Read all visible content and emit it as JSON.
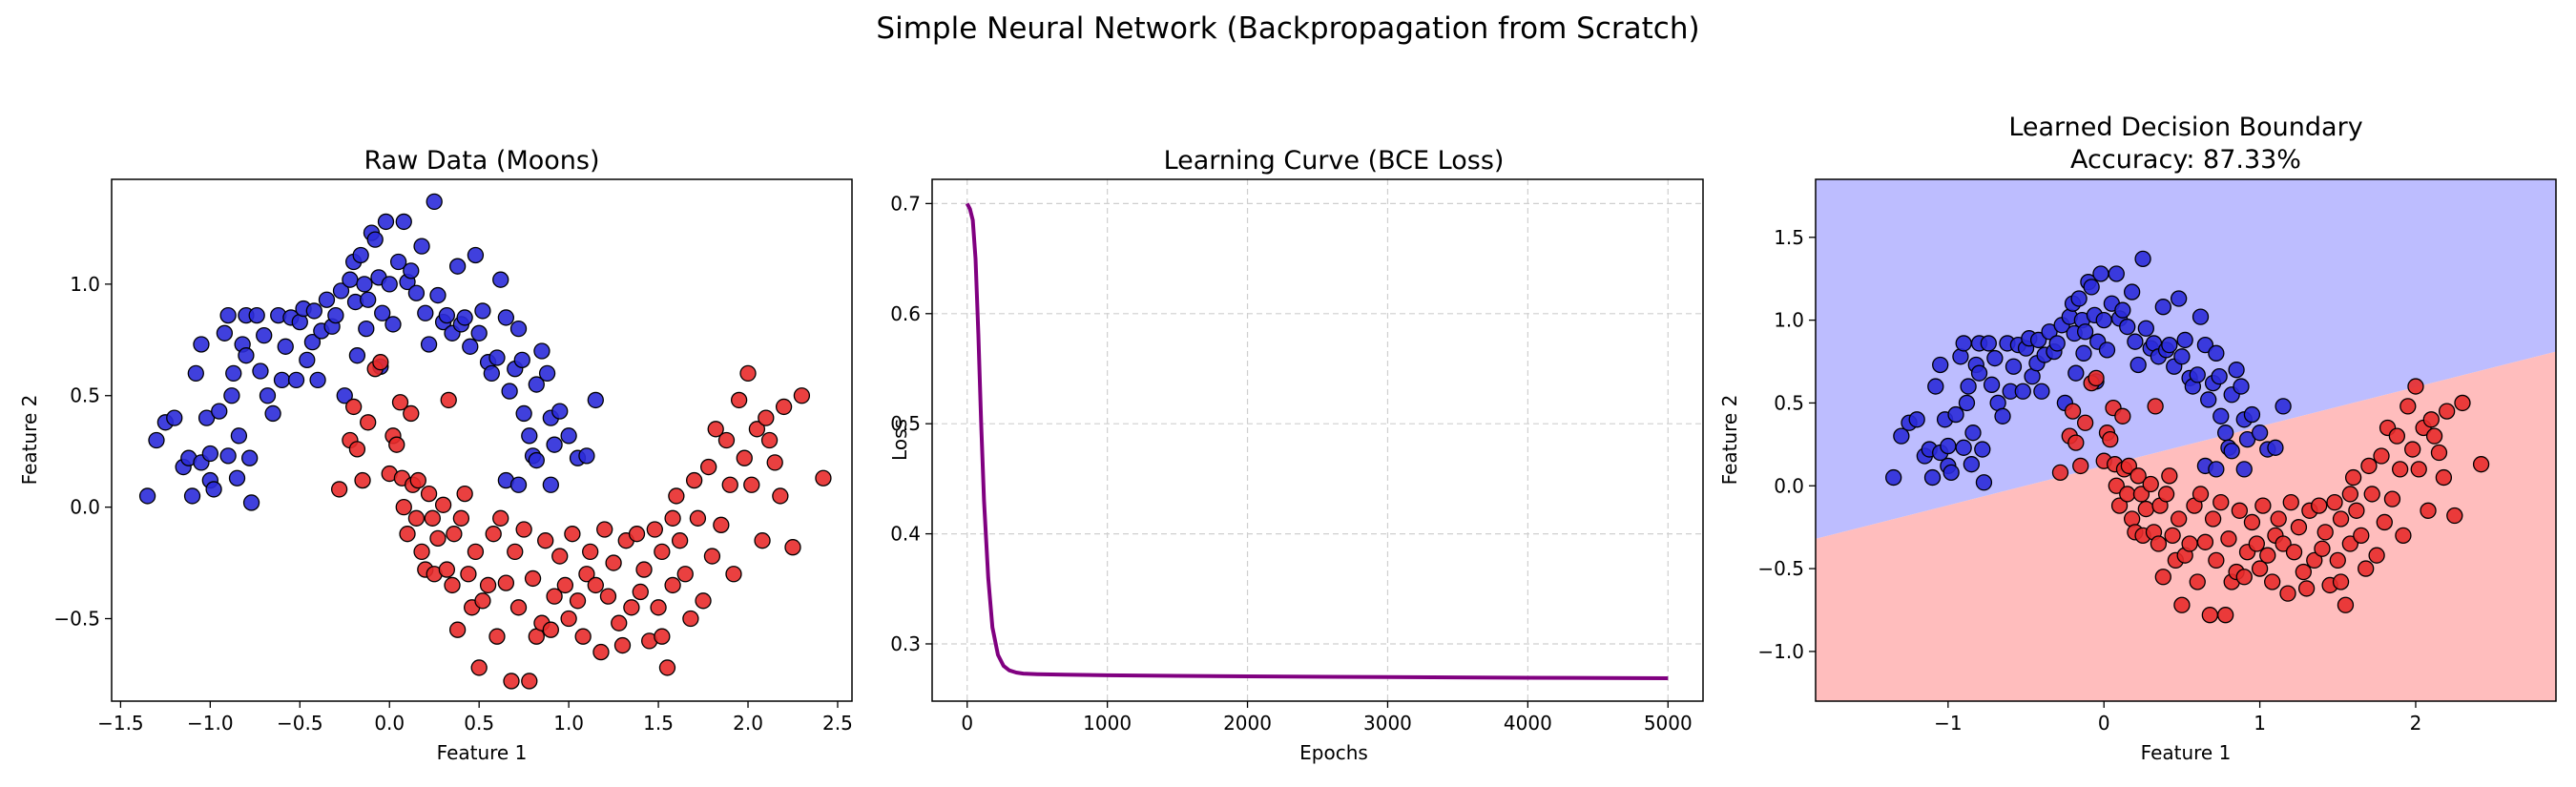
{
  "figure": {
    "suptitle": "Simple Neural Network (Backpropagation from Scratch)"
  },
  "chart_data": [
    {
      "type": "scatter",
      "title": "Raw Data (Moons)",
      "xlabel": "Feature 1",
      "ylabel": "Feature 2",
      "xlim": [
        -1.55,
        2.58
      ],
      "ylim": [
        -0.87,
        1.47
      ],
      "xticks": [
        -1.5,
        -1.0,
        -0.5,
        0.0,
        0.5,
        1.0,
        1.5,
        2.0,
        2.5
      ],
      "xtick_labels": [
        "−1.5",
        "−1.0",
        "−0.5",
        "0.0",
        "0.5",
        "1.0",
        "1.5",
        "2.0",
        "2.5"
      ],
      "yticks": [
        -0.5,
        0.0,
        0.5,
        1.0
      ],
      "ytick_labels": [
        "−0.5",
        "0.0",
        "0.5",
        "1.0"
      ],
      "grid": false,
      "colors": {
        "class0": "#2b2bd9",
        "class1": "#e82b2b",
        "edge": "#000000"
      },
      "series": [
        {
          "values": [
            [
              -1.35,
              0.05
            ],
            [
              -1.3,
              0.3
            ],
            [
              -1.25,
              0.38
            ],
            [
              -1.2,
              0.4
            ],
            [
              -1.15,
              0.18
            ],
            [
              -1.12,
              0.22
            ],
            [
              -1.1,
              0.05
            ],
            [
              -1.08,
              0.6
            ],
            [
              -1.05,
              0.73
            ],
            [
              -1.05,
              0.2
            ],
            [
              -1.02,
              0.4
            ],
            [
              -1.0,
              0.24
            ],
            [
              -1.0,
              0.12
            ],
            [
              -0.98,
              0.08
            ],
            [
              -0.95,
              0.43
            ],
            [
              -0.92,
              0.78
            ],
            [
              -0.9,
              0.86
            ],
            [
              -0.9,
              0.23
            ],
            [
              -0.88,
              0.5
            ],
            [
              -0.87,
              0.6
            ],
            [
              -0.85,
              0.13
            ],
            [
              -0.84,
              0.32
            ],
            [
              -0.82,
              0.73
            ],
            [
              -0.8,
              0.86
            ],
            [
              -0.8,
              0.68
            ],
            [
              -0.78,
              0.22
            ],
            [
              -0.77,
              0.02
            ],
            [
              -0.74,
              0.86
            ],
            [
              -0.72,
              0.61
            ],
            [
              -0.7,
              0.77
            ],
            [
              -0.68,
              0.5
            ],
            [
              -0.65,
              0.42
            ],
            [
              -0.62,
              0.86
            ],
            [
              -0.6,
              0.57
            ],
            [
              -0.58,
              0.72
            ],
            [
              -0.55,
              0.85
            ],
            [
              -0.52,
              0.57
            ],
            [
              -0.5,
              0.83
            ],
            [
              -0.48,
              0.89
            ],
            [
              -0.46,
              0.66
            ],
            [
              -0.43,
              0.74
            ],
            [
              -0.42,
              0.88
            ],
            [
              -0.4,
              0.57
            ],
            [
              -0.38,
              0.79
            ],
            [
              -0.35,
              0.93
            ],
            [
              -0.32,
              0.81
            ],
            [
              -0.3,
              0.86
            ],
            [
              -0.27,
              0.97
            ],
            [
              -0.25,
              0.5
            ],
            [
              -0.22,
              1.02
            ],
            [
              -0.2,
              1.1
            ],
            [
              -0.19,
              0.92
            ],
            [
              -0.18,
              0.68
            ],
            [
              -0.16,
              1.13
            ],
            [
              -0.14,
              1.0
            ],
            [
              -0.13,
              0.8
            ],
            [
              -0.12,
              0.93
            ],
            [
              -0.1,
              1.23
            ],
            [
              -0.08,
              1.2
            ],
            [
              -0.06,
              1.03
            ],
            [
              -0.05,
              0.63
            ],
            [
              -0.04,
              0.87
            ],
            [
              -0.02,
              1.28
            ],
            [
              0.0,
              1.0
            ],
            [
              0.02,
              0.82
            ],
            [
              0.05,
              1.1
            ],
            [
              0.08,
              1.28
            ],
            [
              0.1,
              1.01
            ],
            [
              0.12,
              1.06
            ],
            [
              0.15,
              0.96
            ],
            [
              0.18,
              1.17
            ],
            [
              0.2,
              0.87
            ],
            [
              0.22,
              0.73
            ],
            [
              0.25,
              1.37
            ],
            [
              0.27,
              0.95
            ],
            [
              0.3,
              0.83
            ],
            [
              0.32,
              0.86
            ],
            [
              0.35,
              0.78
            ],
            [
              0.38,
              1.08
            ],
            [
              0.4,
              0.82
            ],
            [
              0.42,
              0.85
            ],
            [
              0.45,
              0.72
            ],
            [
              0.48,
              1.13
            ],
            [
              0.5,
              0.78
            ],
            [
              0.52,
              0.88
            ],
            [
              0.55,
              0.65
            ],
            [
              0.57,
              0.6
            ],
            [
              0.6,
              0.67
            ],
            [
              0.62,
              1.02
            ],
            [
              0.65,
              0.85
            ],
            [
              0.67,
              0.52
            ],
            [
              0.7,
              0.62
            ],
            [
              0.72,
              0.8
            ],
            [
              0.74,
              0.66
            ],
            [
              0.75,
              0.42
            ],
            [
              0.78,
              0.32
            ],
            [
              0.8,
              0.23
            ],
            [
              0.82,
              0.55
            ],
            [
              0.85,
              0.7
            ],
            [
              0.88,
              0.6
            ],
            [
              0.9,
              0.4
            ],
            [
              0.92,
              0.28
            ],
            [
              0.95,
              0.43
            ],
            [
              1.0,
              0.32
            ],
            [
              1.05,
              0.22
            ],
            [
              1.1,
              0.23
            ],
            [
              1.15,
              0.48
            ],
            [
              0.65,
              0.12
            ],
            [
              0.72,
              0.1
            ],
            [
              0.82,
              0.21
            ],
            [
              0.9,
              0.1
            ]
          ]
        },
        {
          "values": [
            [
              -0.28,
              0.08
            ],
            [
              -0.22,
              0.3
            ],
            [
              -0.2,
              0.45
            ],
            [
              -0.18,
              0.26
            ],
            [
              -0.15,
              0.12
            ],
            [
              -0.12,
              0.38
            ],
            [
              -0.08,
              0.62
            ],
            [
              -0.05,
              0.65
            ],
            [
              0.0,
              0.15
            ],
            [
              0.02,
              0.32
            ],
            [
              0.04,
              0.28
            ],
            [
              0.06,
              0.47
            ],
            [
              0.07,
              0.13
            ],
            [
              0.08,
              0.0
            ],
            [
              0.1,
              -0.12
            ],
            [
              0.12,
              0.42
            ],
            [
              0.13,
              0.1
            ],
            [
              0.15,
              -0.05
            ],
            [
              0.16,
              0.12
            ],
            [
              0.18,
              -0.2
            ],
            [
              0.2,
              -0.28
            ],
            [
              0.22,
              0.06
            ],
            [
              0.24,
              -0.05
            ],
            [
              0.25,
              -0.3
            ],
            [
              0.27,
              -0.14
            ],
            [
              0.3,
              0.01
            ],
            [
              0.32,
              -0.28
            ],
            [
              0.33,
              0.48
            ],
            [
              0.35,
              -0.35
            ],
            [
              0.36,
              -0.12
            ],
            [
              0.38,
              -0.55
            ],
            [
              0.4,
              -0.05
            ],
            [
              0.42,
              0.06
            ],
            [
              0.44,
              -0.3
            ],
            [
              0.46,
              -0.45
            ],
            [
              0.48,
              -0.2
            ],
            [
              0.5,
              -0.72
            ],
            [
              0.52,
              -0.42
            ],
            [
              0.55,
              -0.35
            ],
            [
              0.58,
              -0.12
            ],
            [
              0.6,
              -0.58
            ],
            [
              0.62,
              -0.05
            ],
            [
              0.65,
              -0.34
            ],
            [
              0.68,
              -0.78
            ],
            [
              0.7,
              -0.2
            ],
            [
              0.72,
              -0.45
            ],
            [
              0.75,
              -0.1
            ],
            [
              0.78,
              -0.78
            ],
            [
              0.8,
              -0.32
            ],
            [
              0.82,
              -0.58
            ],
            [
              0.85,
              -0.52
            ],
            [
              0.87,
              -0.15
            ],
            [
              0.9,
              -0.55
            ],
            [
              0.92,
              -0.4
            ],
            [
              0.95,
              -0.22
            ],
            [
              0.98,
              -0.35
            ],
            [
              1.0,
              -0.5
            ],
            [
              1.02,
              -0.12
            ],
            [
              1.05,
              -0.42
            ],
            [
              1.08,
              -0.58
            ],
            [
              1.1,
              -0.3
            ],
            [
              1.12,
              -0.2
            ],
            [
              1.15,
              -0.35
            ],
            [
              1.18,
              -0.65
            ],
            [
              1.2,
              -0.1
            ],
            [
              1.22,
              -0.4
            ],
            [
              1.25,
              -0.25
            ],
            [
              1.28,
              -0.52
            ],
            [
              1.3,
              -0.62
            ],
            [
              1.32,
              -0.15
            ],
            [
              1.35,
              -0.45
            ],
            [
              1.38,
              -0.12
            ],
            [
              1.4,
              -0.38
            ],
            [
              1.42,
              -0.28
            ],
            [
              1.45,
              -0.6
            ],
            [
              1.48,
              -0.1
            ],
            [
              1.5,
              -0.45
            ],
            [
              1.52,
              -0.2
            ],
            [
              1.55,
              -0.72
            ],
            [
              1.58,
              -0.35
            ],
            [
              1.6,
              0.05
            ],
            [
              1.62,
              -0.15
            ],
            [
              1.65,
              -0.3
            ],
            [
              1.68,
              -0.5
            ],
            [
              1.7,
              0.12
            ],
            [
              1.72,
              -0.05
            ],
            [
              1.75,
              -0.42
            ],
            [
              1.78,
              0.18
            ],
            [
              1.8,
              -0.22
            ],
            [
              1.82,
              0.35
            ],
            [
              1.85,
              -0.08
            ],
            [
              1.88,
              0.3
            ],
            [
              1.9,
              0.1
            ],
            [
              1.92,
              -0.3
            ],
            [
              1.95,
              0.48
            ],
            [
              1.98,
              0.22
            ],
            [
              2.0,
              0.6
            ],
            [
              2.02,
              0.1
            ],
            [
              2.05,
              0.35
            ],
            [
              2.08,
              -0.15
            ],
            [
              2.1,
              0.4
            ],
            [
              2.12,
              0.3
            ],
            [
              2.15,
              0.2
            ],
            [
              2.18,
              0.05
            ],
            [
              2.2,
              0.45
            ],
            [
              2.25,
              -0.18
            ],
            [
              2.3,
              0.5
            ],
            [
              2.42,
              0.13
            ],
            [
              1.58,
              -0.05
            ],
            [
              1.52,
              -0.58
            ]
          ]
        }
      ]
    },
    {
      "type": "line",
      "title": "Learning Curve (BCE Loss)",
      "xlabel": "Epochs",
      "ylabel": "Loss",
      "xlim": [
        -250,
        5250
      ],
      "ylim": [
        0.248,
        0.722
      ],
      "xticks": [
        0,
        1000,
        2000,
        3000,
        4000,
        5000
      ],
      "xtick_labels": [
        "0",
        "1000",
        "2000",
        "3000",
        "4000",
        "5000"
      ],
      "yticks": [
        0.3,
        0.4,
        0.5,
        0.6,
        0.7
      ],
      "ytick_labels": [
        "0.3",
        "0.4",
        "0.5",
        "0.6",
        "0.7"
      ],
      "grid": true,
      "colors": {
        "line": "#800080"
      },
      "x": [
        0,
        20,
        40,
        60,
        80,
        100,
        120,
        150,
        180,
        220,
        260,
        300,
        350,
        400,
        500,
        700,
        1000,
        1500,
        2000,
        3000,
        4000,
        5000
      ],
      "values": [
        0.7,
        0.695,
        0.685,
        0.65,
        0.58,
        0.5,
        0.43,
        0.36,
        0.315,
        0.29,
        0.28,
        0.276,
        0.274,
        0.273,
        0.2725,
        0.272,
        0.2715,
        0.271,
        0.2705,
        0.2698,
        0.2692,
        0.2688
      ]
    },
    {
      "type": "scatter",
      "title": "Learned Decision Boundary",
      "subtitle": "Accuracy: 87.33%",
      "xlabel": "Feature 1",
      "ylabel": "Feature 2",
      "xlim": [
        -1.85,
        2.9
      ],
      "ylim": [
        -1.3,
        1.85
      ],
      "xticks": [
        -1,
        0,
        1,
        2
      ],
      "xtick_labels": [
        "−1",
        "0",
        "1",
        "2"
      ],
      "yticks": [
        -1.0,
        -0.5,
        0.0,
        0.5,
        1.0,
        1.5
      ],
      "ytick_labels": [
        "−1.0",
        "−0.5",
        "0.0",
        "0.5",
        "1.0",
        "1.5"
      ],
      "grid": false,
      "decision_boundary": {
        "at_xmin": -0.32,
        "at_xmax": 0.81
      },
      "colors": {
        "region0": "#bdbdff",
        "region1": "#ffbdbd",
        "class0": "#2b2bd9",
        "class1": "#e82b2b",
        "edge": "#000000"
      }
    }
  ]
}
